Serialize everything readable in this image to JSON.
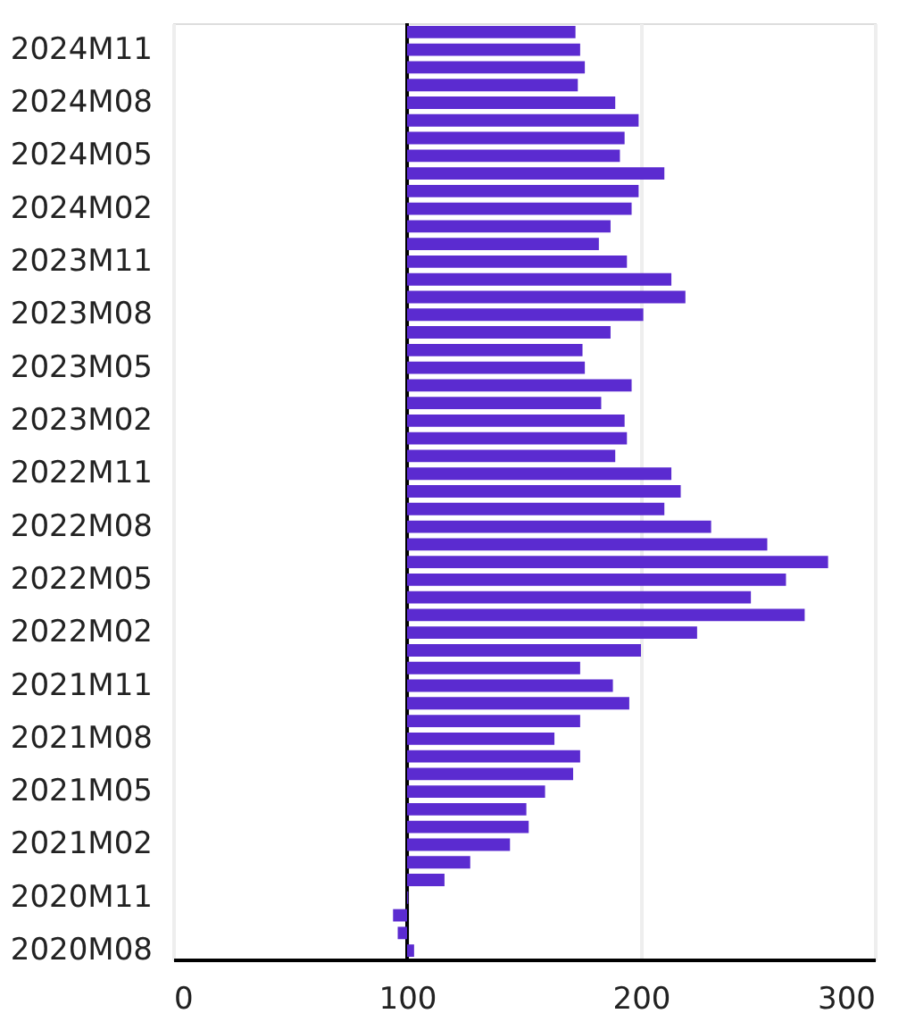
{
  "chart_data": {
    "type": "bar",
    "orientation": "horizontal",
    "categories": [
      null,
      "2024M11",
      null,
      null,
      "2024M08",
      null,
      null,
      "2024M05",
      null,
      null,
      "2024M02",
      null,
      null,
      "2023M11",
      null,
      null,
      "2023M08",
      null,
      null,
      "2023M05",
      null,
      null,
      "2023M02",
      null,
      null,
      "2022M11",
      null,
      null,
      "2022M08",
      null,
      null,
      "2022M05",
      null,
      null,
      "2022M02",
      null,
      null,
      "2021M11",
      null,
      null,
      "2021M08",
      null,
      null,
      "2021M05",
      null,
      null,
      "2021M02",
      null,
      null,
      "2020M11",
      null,
      null,
      "2020M08"
    ],
    "base": [
      100,
      100,
      100,
      100,
      100,
      100,
      100,
      100,
      100,
      100,
      100,
      100,
      100,
      100,
      100,
      100,
      100,
      100,
      100,
      100,
      100,
      100,
      100,
      100,
      100,
      100,
      100,
      100,
      100,
      100,
      100,
      100,
      100,
      100,
      100,
      100,
      100,
      100,
      100,
      100,
      100,
      100,
      100,
      100,
      100,
      100,
      100,
      100,
      100,
      100,
      100,
      100,
      100
    ],
    "values": [
      72,
      74,
      76,
      73,
      89,
      99,
      93,
      91,
      110,
      99,
      96,
      87,
      82,
      94,
      113,
      119,
      101,
      87,
      75,
      76,
      96,
      83,
      93,
      94,
      89,
      113,
      117,
      110,
      130,
      154,
      180,
      162,
      147,
      170,
      124,
      100,
      74,
      88,
      95,
      74,
      63,
      74,
      71,
      59,
      51,
      52,
      44,
      27,
      16,
      0.5,
      -6,
      -4,
      3
    ],
    "color": "#5b2bd0",
    "xlim": [
      0,
      300
    ],
    "xticks": [
      0,
      100,
      200,
      300
    ],
    "ref_lines": [
      {
        "axis": "x",
        "value": 100,
        "color": "#000000"
      }
    ],
    "grid": "x"
  }
}
